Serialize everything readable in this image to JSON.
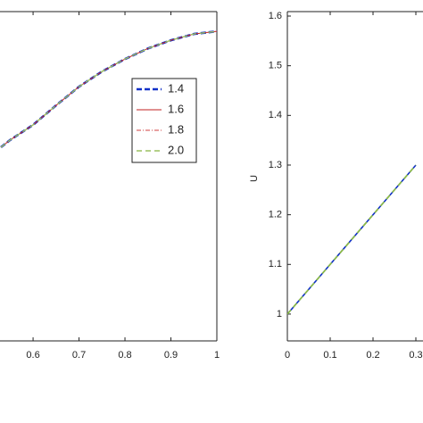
{
  "chart_data": [
    {
      "type": "line",
      "x": [
        0.53,
        0.55,
        0.6,
        0.65,
        0.7,
        0.75,
        0.8,
        0.85,
        0.9,
        0.95,
        1.0
      ],
      "series": [
        {
          "name": "1.4",
          "color": "#1030c8",
          "dash": "6,3",
          "width": 2.6,
          "values": [
            0.588,
            0.61,
            0.656,
            0.715,
            0.772,
            0.818,
            0.856,
            0.888,
            0.913,
            0.932,
            0.94
          ]
        },
        {
          "name": "1.6",
          "color": "#c02020",
          "dash": "none",
          "width": 1,
          "values": [
            0.588,
            0.61,
            0.656,
            0.715,
            0.772,
            0.818,
            0.856,
            0.888,
            0.913,
            0.932,
            0.94
          ]
        },
        {
          "name": "1.8",
          "color": "#d04040",
          "dash": "5,2,1,2",
          "width": 1,
          "values": [
            0.588,
            0.61,
            0.656,
            0.715,
            0.772,
            0.818,
            0.856,
            0.888,
            0.913,
            0.932,
            0.94
          ]
        },
        {
          "name": "2.0",
          "color": "#9cc060",
          "dash": "6,4",
          "width": 1.4,
          "values": [
            0.588,
            0.61,
            0.656,
            0.715,
            0.772,
            0.818,
            0.856,
            0.888,
            0.913,
            0.932,
            0.94
          ]
        }
      ],
      "xlim": [
        0.528,
        1
      ],
      "xticks": [
        0.6,
        0.7,
        0.8,
        0.9,
        1
      ],
      "ylim": [
        0,
        1
      ]
    },
    {
      "type": "line",
      "ylabel": "U",
      "x": [
        0,
        0.1,
        0.2,
        0.3
      ],
      "series": [
        {
          "color": "#1030c8",
          "dash": "none",
          "width": 1.6,
          "values": [
            1,
            1.1,
            1.2,
            1.3
          ]
        },
        {
          "color": "#8fbf3f",
          "dash": "6,4",
          "width": 1.6,
          "values": [
            1,
            1.1,
            1.2,
            1.3
          ]
        }
      ],
      "xlim": [
        0,
        0.3
      ],
      "xticks": [
        0,
        0.1,
        0.2,
        0.3
      ],
      "ylim": [
        0.946,
        1.609
      ],
      "yticks": [
        1,
        1.1,
        1.2,
        1.3,
        1.4,
        1.5,
        1.6
      ]
    }
  ]
}
